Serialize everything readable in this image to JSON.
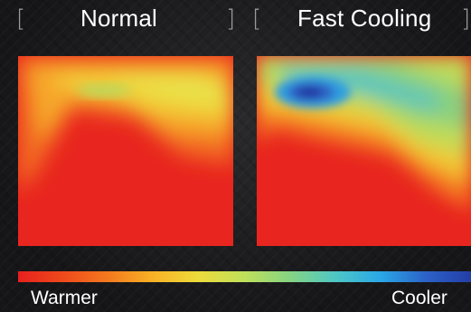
{
  "panels": [
    {
      "title": "Normal"
    },
    {
      "title": "Fast Cooling"
    }
  ],
  "scale": {
    "left_label": "Warmer",
    "right_label": "Cooler",
    "colors": [
      "#e8201e",
      "#ee4a1c",
      "#f47a1e",
      "#f8b326",
      "#ecdc3c",
      "#bfe05a",
      "#86d483",
      "#4fc7c4",
      "#2aa7e6",
      "#2c62c8",
      "#233ea6"
    ]
  },
  "brackets": {
    "open": "[",
    "close": "]"
  }
}
